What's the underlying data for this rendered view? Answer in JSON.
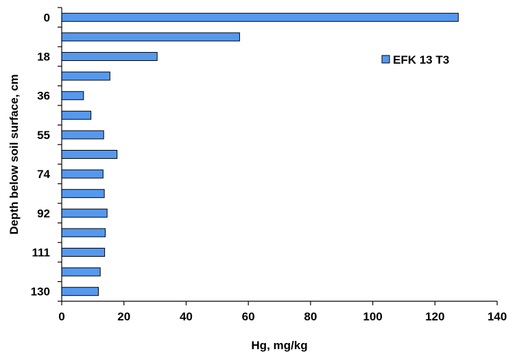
{
  "chart_data": {
    "type": "bar",
    "orientation": "horizontal",
    "categories": [
      "0",
      "",
      "18",
      "",
      "36",
      "",
      "55",
      "",
      "74",
      "",
      "92",
      "",
      "111",
      "",
      "130"
    ],
    "series": [
      {
        "name": "EFK 13  T3",
        "values": [
          127.5,
          57.2,
          30.7,
          15.5,
          7.0,
          9.4,
          13.5,
          17.8,
          13.3,
          13.7,
          14.6,
          14.0,
          13.8,
          12.4,
          11.8
        ],
        "color": "#5599ee"
      }
    ],
    "xlabel": "Hg, mg/kg",
    "ylabel": "Depth below soil surface, cm",
    "xlim": [
      0,
      140
    ],
    "xticks": [
      "0",
      "20",
      "40",
      "60",
      "80",
      "100",
      "120",
      "140"
    ],
    "grid": false,
    "legend": {
      "position": "top-right"
    }
  }
}
